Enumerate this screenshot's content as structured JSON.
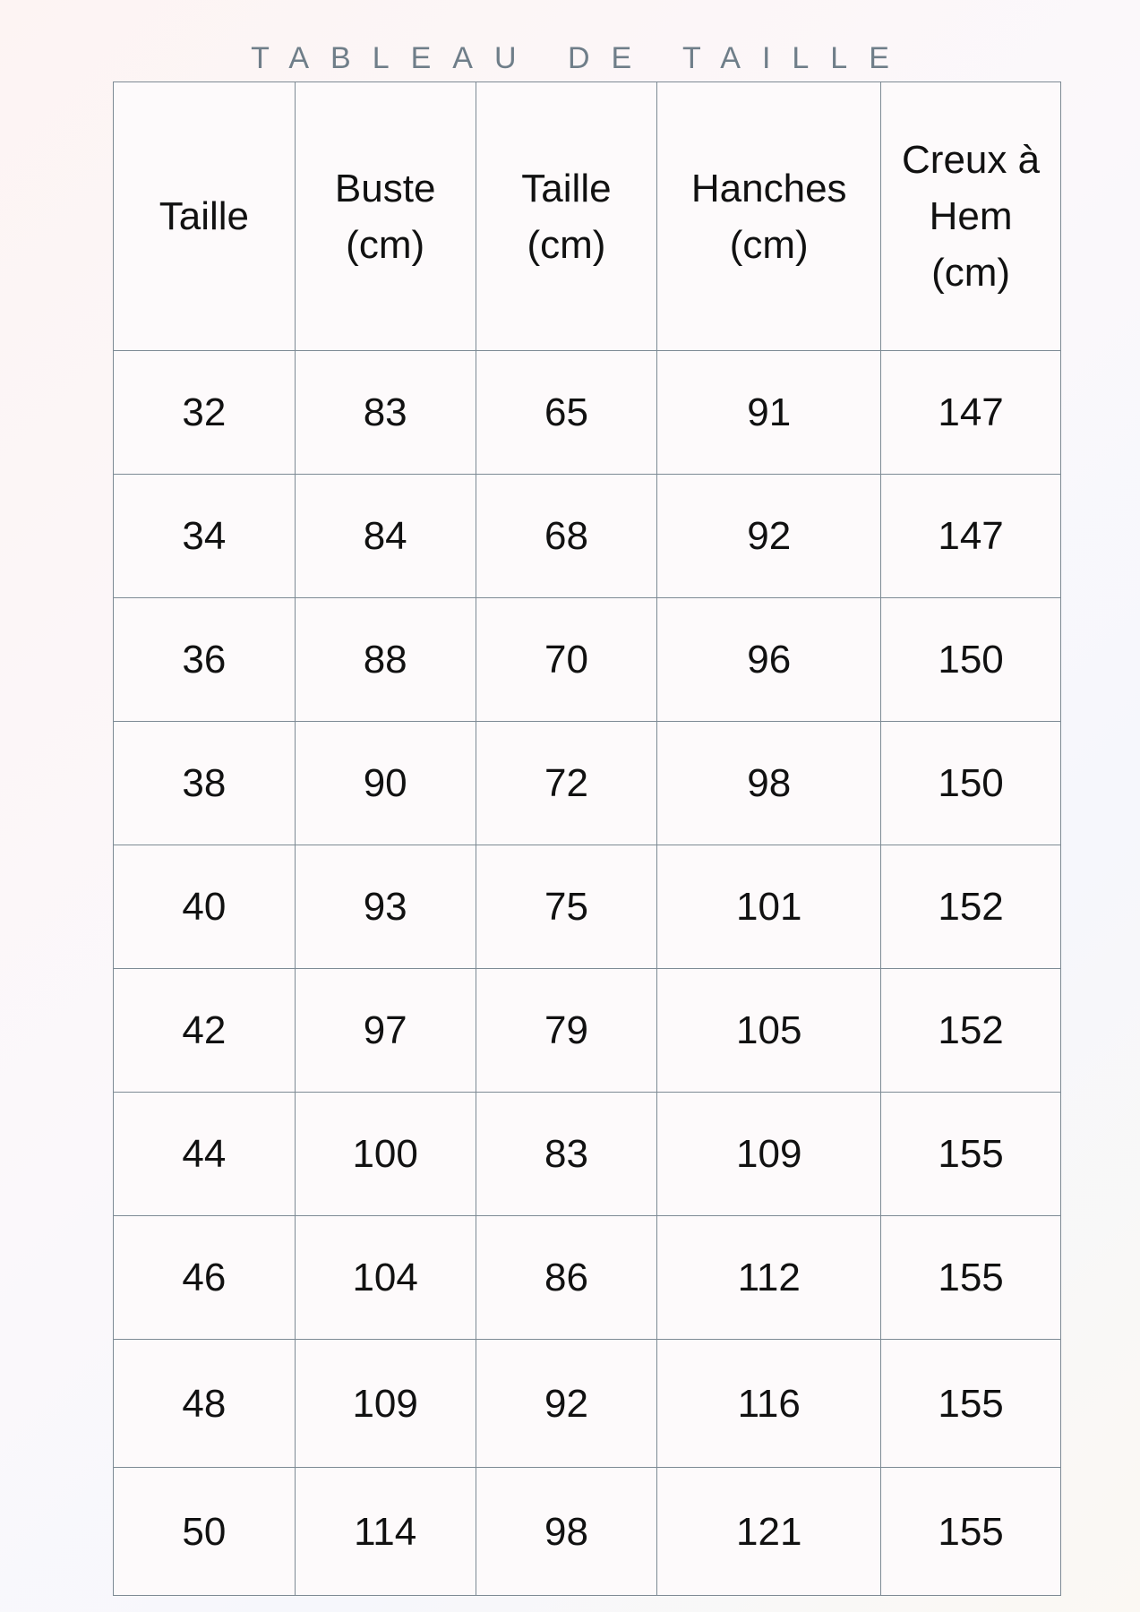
{
  "title": "TABLEAU DE TAILLE",
  "columns": [
    "Taille",
    "Buste (cm)",
    "Taille (cm)",
    "Hanches (cm)",
    "Creux à Hem (cm)"
  ],
  "rows": [
    [
      "32",
      "83",
      "65",
      "91",
      "147"
    ],
    [
      "34",
      "84",
      "68",
      "92",
      "147"
    ],
    [
      "36",
      "88",
      "70",
      "96",
      "150"
    ],
    [
      "38",
      "90",
      "72",
      "98",
      "150"
    ],
    [
      "40",
      "93",
      "75",
      "101",
      "152"
    ],
    [
      "42",
      "97",
      "79",
      "105",
      "152"
    ],
    [
      "44",
      "100",
      "83",
      "109",
      "155"
    ],
    [
      "46",
      "104",
      "86",
      "112",
      "155"
    ],
    [
      "48",
      "109",
      "92",
      "116",
      "155"
    ],
    [
      "50",
      "114",
      "98",
      "121",
      "155"
    ]
  ],
  "colors": {
    "border": "#7d8a94",
    "title": "#6f7e89"
  }
}
